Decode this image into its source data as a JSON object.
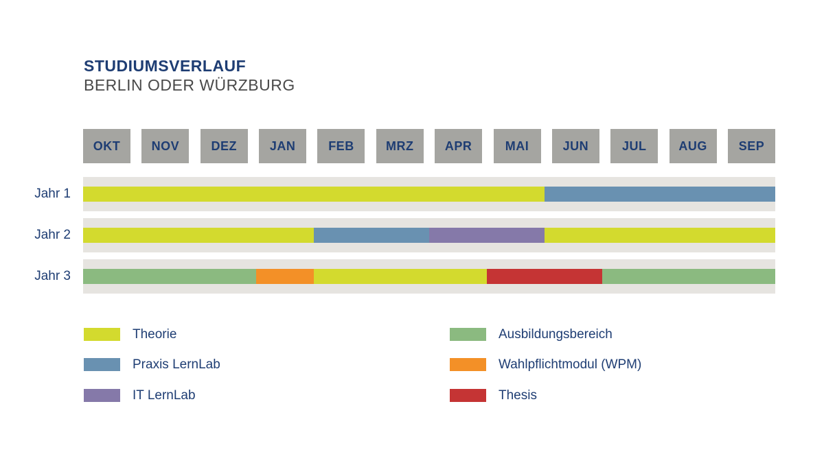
{
  "title": "STUDIUMSVERLAUF",
  "subtitle": "BERLIN ODER WÜRZBURG",
  "months": [
    "OKT",
    "NOV",
    "DEZ",
    "JAN",
    "FEB",
    "MRZ",
    "APR",
    "MAI",
    "JUN",
    "JUL",
    "AUG",
    "SEP"
  ],
  "colors": {
    "navy_text": "#1e3d73",
    "subtitle_gray": "#4a4a4a",
    "month_cell_bg": "#a5a5a1",
    "row_band_bg": "#e6e4e0",
    "theorie": "#d3da2e",
    "praxis_lernlab": "#6991b1",
    "it_lernlab": "#8579a9",
    "ausbildungsbereich": "#8bba80",
    "wpm": "#f39027",
    "thesis": "#c53434"
  },
  "chart_data": {
    "type": "bar",
    "subtype": "gantt-timeline",
    "title": "STUDIUMSVERLAUF",
    "subtitle": "BERLIN ODER WÜRZBURG",
    "x_categories": [
      "OKT",
      "NOV",
      "DEZ",
      "JAN",
      "FEB",
      "MRZ",
      "APR",
      "MAI",
      "JUN",
      "JUL",
      "AUG",
      "SEP"
    ],
    "months_per_year": 12,
    "rows": [
      {
        "label": "Jahr 1",
        "segments": [
          {
            "category": "Theorie",
            "color_key": "theorie",
            "start_month": "OKT",
            "end_month": "MAI",
            "months": 8
          },
          {
            "category": "Praxis LernLab",
            "color_key": "praxis_lernlab",
            "start_month": "JUN",
            "end_month": "SEP",
            "months": 4
          }
        ]
      },
      {
        "label": "Jahr 2",
        "segments": [
          {
            "category": "Theorie",
            "color_key": "theorie",
            "start_month": "OKT",
            "end_month": "JAN",
            "months": 4
          },
          {
            "category": "Praxis LernLab",
            "color_key": "praxis_lernlab",
            "start_month": "FEB",
            "end_month": "MRZ",
            "months": 2
          },
          {
            "category": "IT LernLab",
            "color_key": "it_lernlab",
            "start_month": "APR",
            "end_month": "MAI",
            "months": 2
          },
          {
            "category": "Theorie",
            "color_key": "theorie",
            "start_month": "JUN",
            "end_month": "SEP",
            "months": 4
          }
        ]
      },
      {
        "label": "Jahr 3",
        "segments": [
          {
            "category": "Ausbildungsbereich",
            "color_key": "ausbildungsbereich",
            "start_month": "OKT",
            "end_month": "DEZ",
            "months": 3
          },
          {
            "category": "Wahlpflichtmodul (WPM)",
            "color_key": "wpm",
            "start_month": "JAN",
            "end_month": "JAN",
            "months": 1
          },
          {
            "category": "Theorie",
            "color_key": "theorie",
            "start_month": "FEB",
            "end_month": "APR",
            "months": 3
          },
          {
            "category": "Thesis",
            "color_key": "thesis",
            "start_month": "MAI",
            "end_month": "JUN",
            "months": 2
          },
          {
            "category": "Ausbildungsbereich",
            "color_key": "ausbildungsbereich",
            "start_month": "JUL",
            "end_month": "SEP",
            "months": 3
          }
        ]
      }
    ],
    "legend_position": "bottom, two columns"
  },
  "legend": {
    "columns": [
      [
        {
          "label": "Theorie",
          "color_key": "theorie"
        },
        {
          "label": "Praxis LernLab",
          "color_key": "praxis_lernlab"
        },
        {
          "label": "IT LernLab",
          "color_key": "it_lernlab"
        }
      ],
      [
        {
          "label": "Ausbildungsbereich",
          "color_key": "ausbildungsbereich"
        },
        {
          "label": "Wahlpflichtmodul (WPM)",
          "color_key": "wpm"
        },
        {
          "label": "Thesis",
          "color_key": "thesis"
        }
      ]
    ]
  }
}
